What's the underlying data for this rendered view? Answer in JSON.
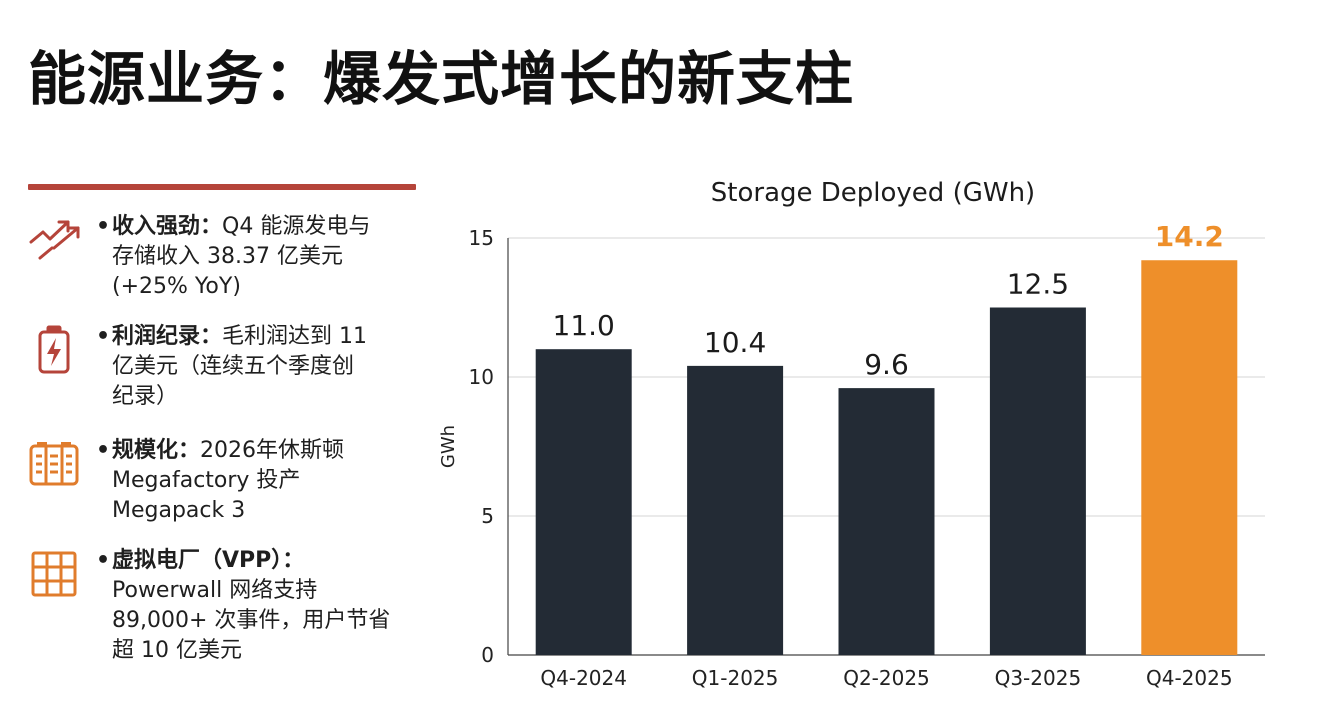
{
  "page": {
    "title": "能源业务：爆发式增长的新支柱"
  },
  "bullets": [
    {
      "icon": "trend-up-arrows-icon",
      "bullet": "•",
      "label": "收入强劲：",
      "lines": [
        "Q4 能源发电与",
        "存储收入 38.37 亿美元",
        "(+25% YoY)"
      ]
    },
    {
      "icon": "battery-bolt-icon",
      "bullet": "•",
      "label": "利润纪录：",
      "lines": [
        "毛利润达到 11",
        "亿美元（连续五个季度创",
        "纪录）"
      ]
    },
    {
      "icon": "megapack-icon",
      "bullet": "•",
      "label": "规模化：",
      "lines": [
        "2026年休斯顿",
        "Megafactory 投产",
        "Megapack 3"
      ]
    },
    {
      "icon": "solar-grid-icon",
      "bullet": "•",
      "label": "虚拟电厂（VPP）：",
      "lines": [
        "",
        "Powerwall 网络支持",
        "89,000+ 次事件，用户节省",
        "超 10 亿美元"
      ]
    }
  ],
  "colors": {
    "accent_line": "#b5443a",
    "bar": "#232b35",
    "highlight": "#ee8f2a",
    "icon_red": "#b5443a",
    "icon_orange": "#e07c2c"
  },
  "chart_data": {
    "type": "bar",
    "title": "Storage Deployed (GWh)",
    "ylabel": "GWh",
    "xlabel": "",
    "categories": [
      "Q4-2024",
      "Q1-2025",
      "Q2-2025",
      "Q3-2025",
      "Q4-2025"
    ],
    "values": [
      11.0,
      10.4,
      9.6,
      12.5,
      14.2
    ],
    "value_labels": [
      "11.0",
      "10.4",
      "9.6",
      "12.5",
      "14.2"
    ],
    "highlight_index": 4,
    "ylim": [
      0,
      15
    ],
    "yticks": [
      0,
      5,
      10,
      15
    ],
    "grid": true
  }
}
